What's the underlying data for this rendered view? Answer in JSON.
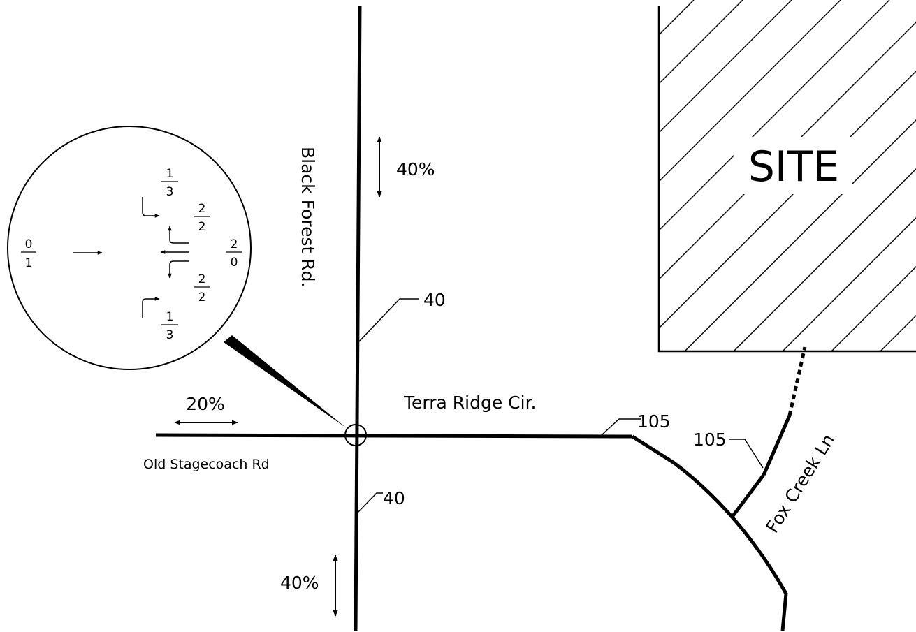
{
  "site": {
    "label": "SITE"
  },
  "roads": {
    "black_forest": "Black Forest Rd.",
    "terra_ridge": "Terra Ridge Cir.",
    "old_stagecoach": "Old Stagecoach Rd",
    "fox_creek": "Fox Creek Ln"
  },
  "splits": {
    "north": "40%",
    "south": "40%",
    "west": "20%"
  },
  "volumes": {
    "bf_north": "40",
    "bf_south": "40",
    "terra": "105",
    "fox": "105"
  },
  "inset": {
    "west_approach": {
      "top": "0",
      "bottom": "1"
    },
    "east_approach": {
      "top": "2",
      "bottom": "0"
    },
    "top_right_turn": {
      "top": "1",
      "bottom": "3"
    },
    "upper_mid": {
      "top": "2",
      "bottom": "2"
    },
    "lower_mid": {
      "top": "2",
      "bottom": "2"
    },
    "bottom_right_turn": {
      "top": "1",
      "bottom": "3"
    }
  },
  "colors": {
    "ink": "#000000",
    "paper": "#ffffff"
  }
}
